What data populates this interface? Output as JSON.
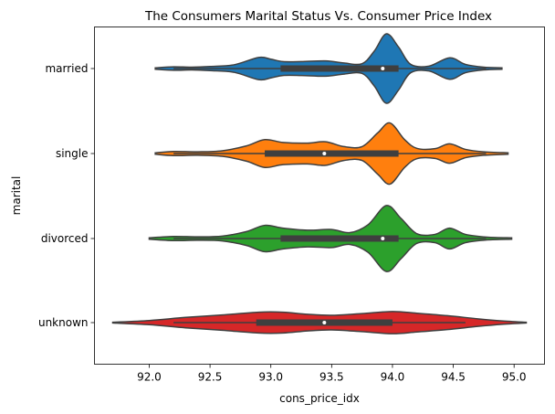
{
  "chart_data": {
    "type": "violin",
    "title": "The Consumers Marital Status Vs. Consumer Price Index",
    "xlabel": "cons_price_idx",
    "ylabel": "marital",
    "xlim": [
      91.55,
      95.25
    ],
    "xticks": [
      92.0,
      92.5,
      93.0,
      93.5,
      94.0,
      94.5,
      95.0
    ],
    "xtick_labels": [
      "92.0",
      "92.5",
      "93.0",
      "93.5",
      "94.0",
      "94.5",
      "95.0"
    ],
    "categories": [
      "married",
      "single",
      "divorced",
      "unknown"
    ],
    "orientation": "horizontal",
    "grid": false,
    "series": [
      {
        "name": "married",
        "color": "#1f77b4",
        "extent": [
          92.05,
          94.9
        ],
        "q1": 93.08,
        "median": 93.92,
        "q3": 94.05,
        "whisker_low": 92.2,
        "whisker_high": 94.77,
        "density": [
          [
            92.05,
            0.02
          ],
          [
            92.2,
            0.05
          ],
          [
            92.35,
            0.04
          ],
          [
            92.5,
            0.06
          ],
          [
            92.7,
            0.11
          ],
          [
            92.9,
            0.32
          ],
          [
            93.0,
            0.27
          ],
          [
            93.1,
            0.2
          ],
          [
            93.25,
            0.2
          ],
          [
            93.45,
            0.22
          ],
          [
            93.6,
            0.16
          ],
          [
            93.75,
            0.14
          ],
          [
            93.85,
            0.5
          ],
          [
            93.95,
            1.0
          ],
          [
            94.05,
            0.62
          ],
          [
            94.15,
            0.12
          ],
          [
            94.3,
            0.07
          ],
          [
            94.47,
            0.31
          ],
          [
            94.6,
            0.12
          ],
          [
            94.75,
            0.04
          ],
          [
            94.9,
            0.02
          ]
        ]
      },
      {
        "name": "single",
        "color": "#ff7f0e",
        "extent": [
          92.05,
          94.95
        ],
        "q1": 92.95,
        "median": 93.44,
        "q3": 94.05,
        "whisker_low": 92.2,
        "whisker_high": 94.77,
        "density": [
          [
            92.05,
            0.02
          ],
          [
            92.2,
            0.06
          ],
          [
            92.4,
            0.05
          ],
          [
            92.6,
            0.08
          ],
          [
            92.8,
            0.22
          ],
          [
            92.95,
            0.4
          ],
          [
            93.1,
            0.32
          ],
          [
            93.3,
            0.3
          ],
          [
            93.45,
            0.34
          ],
          [
            93.6,
            0.2
          ],
          [
            93.75,
            0.2
          ],
          [
            93.88,
            0.6
          ],
          [
            93.98,
            0.88
          ],
          [
            94.1,
            0.4
          ],
          [
            94.2,
            0.15
          ],
          [
            94.35,
            0.14
          ],
          [
            94.47,
            0.28
          ],
          [
            94.6,
            0.12
          ],
          [
            94.75,
            0.05
          ],
          [
            94.95,
            0.02
          ]
        ]
      },
      {
        "name": "divorced",
        "color": "#2ca02c",
        "extent": [
          92.0,
          94.98
        ],
        "q1": 93.08,
        "median": 93.92,
        "q3": 94.05,
        "whisker_low": 92.2,
        "whisker_high": 94.77,
        "density": [
          [
            92.0,
            0.02
          ],
          [
            92.2,
            0.06
          ],
          [
            92.4,
            0.05
          ],
          [
            92.6,
            0.07
          ],
          [
            92.8,
            0.2
          ],
          [
            92.95,
            0.38
          ],
          [
            93.1,
            0.3
          ],
          [
            93.3,
            0.24
          ],
          [
            93.5,
            0.26
          ],
          [
            93.65,
            0.17
          ],
          [
            93.8,
            0.4
          ],
          [
            93.95,
            0.95
          ],
          [
            94.07,
            0.58
          ],
          [
            94.2,
            0.14
          ],
          [
            94.35,
            0.12
          ],
          [
            94.47,
            0.3
          ],
          [
            94.6,
            0.12
          ],
          [
            94.78,
            0.04
          ],
          [
            94.98,
            0.02
          ]
        ]
      },
      {
        "name": "unknown",
        "color": "#d62728",
        "extent": [
          91.7,
          95.1
        ],
        "q1": 92.88,
        "median": 93.44,
        "q3": 94.0,
        "whisker_low": 92.2,
        "whisker_high": 94.6,
        "density": [
          [
            91.7,
            0.01
          ],
          [
            92.0,
            0.06
          ],
          [
            92.3,
            0.15
          ],
          [
            92.6,
            0.22
          ],
          [
            92.9,
            0.3
          ],
          [
            93.1,
            0.3
          ],
          [
            93.3,
            0.24
          ],
          [
            93.5,
            0.21
          ],
          [
            93.75,
            0.26
          ],
          [
            94.0,
            0.32
          ],
          [
            94.2,
            0.27
          ],
          [
            94.45,
            0.2
          ],
          [
            94.7,
            0.11
          ],
          [
            94.9,
            0.05
          ],
          [
            95.1,
            0.01
          ]
        ]
      }
    ]
  }
}
